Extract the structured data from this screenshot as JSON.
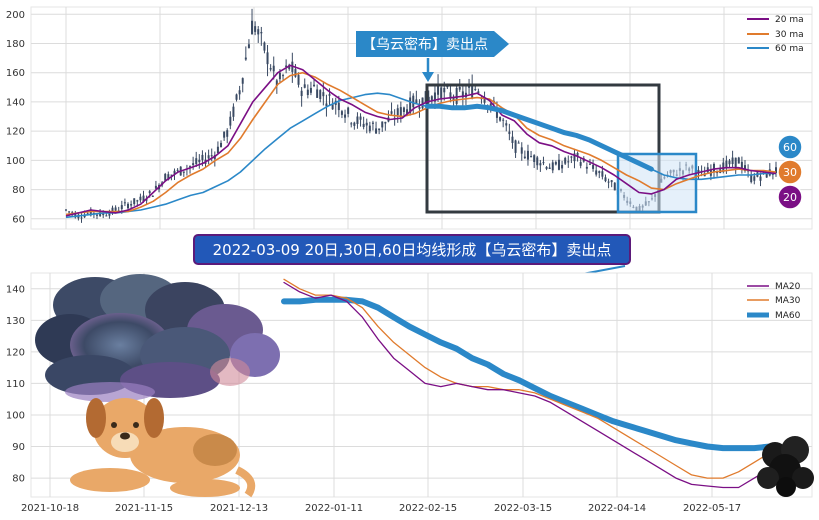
{
  "colors": {
    "ma20": "#7b0f85",
    "ma30": "#e07b2d",
    "ma60": "#2b88c8",
    "candle": "#3a4a63",
    "frame": "#333a40",
    "highlight_stroke": "#2b88c8",
    "highlight_fill": "#cfe3f5",
    "annotation_bg": "#2b88c8",
    "banner_bg": "#2258b8",
    "banner_border": "#5b1a7a"
  },
  "annotations": {
    "arrow_label": "【乌云密布】卖出点",
    "banner": "2022-03-09 20日,30日,60日均线形成【乌云密布】卖出点"
  },
  "badges": {
    "b60": "60",
    "b30": "30",
    "b20": "20"
  },
  "chart_data": [
    {
      "type": "line",
      "ylim": [
        53,
        205
      ],
      "yticks": [
        60,
        80,
        100,
        120,
        140,
        160,
        180,
        200
      ],
      "legend_position": "top-right",
      "grid": true,
      "series": [
        {
          "name": "20 ma",
          "values": [
            62,
            64,
            66,
            65,
            64,
            66,
            70,
            78,
            86,
            92,
            95,
            98,
            103,
            110,
            125,
            140,
            150,
            160,
            165,
            162,
            155,
            148,
            142,
            138,
            133,
            130,
            128,
            129,
            136,
            140,
            142,
            143,
            144,
            146,
            141,
            131,
            127,
            118,
            112,
            110,
            106,
            103,
            99,
            95,
            90,
            84,
            78,
            77,
            80,
            87,
            90,
            92,
            94,
            95,
            95,
            93,
            92,
            91
          ]
        },
        {
          "name": "30 ma",
          "values": [
            63,
            64,
            65,
            65,
            65,
            65,
            68,
            72,
            78,
            85,
            90,
            94,
            100,
            105,
            115,
            128,
            140,
            152,
            158,
            160,
            157,
            152,
            148,
            143,
            138,
            133,
            131,
            130,
            132,
            136,
            139,
            141,
            142,
            143,
            142,
            136,
            131,
            122,
            117,
            114,
            110,
            107,
            104,
            100,
            95,
            90,
            86,
            81,
            80,
            84,
            87,
            90,
            92,
            93,
            94,
            93,
            93,
            92
          ]
        },
        {
          "name": "60 ma",
          "values": [
            61,
            62,
            63,
            64,
            64,
            65,
            66,
            68,
            70,
            73,
            76,
            78,
            82,
            86,
            92,
            100,
            108,
            115,
            122,
            127,
            132,
            137,
            141,
            143,
            145,
            146,
            145,
            142,
            139,
            137,
            137,
            136,
            136,
            137,
            136,
            134,
            131,
            128,
            125,
            122,
            119,
            117,
            114,
            110,
            106,
            102,
            98,
            94,
            90,
            88,
            87,
            87,
            88,
            89,
            90,
            90,
            91,
            91
          ]
        }
      ],
      "candles_close": [
        66,
        62,
        64,
        63,
        66,
        70,
        73,
        78,
        89,
        92,
        96,
        100,
        105,
        120,
        150,
        195,
        175,
        152,
        165,
        148,
        150,
        142,
        138,
        128,
        125,
        122,
        128,
        134,
        140,
        142,
        148,
        144,
        145,
        150,
        140,
        128,
        110,
        104,
        100,
        95,
        98,
        102,
        96,
        90,
        82,
        74,
        66,
        72,
        88,
        92,
        95,
        90,
        94,
        96,
        100,
        88,
        90,
        93
      ]
    },
    {
      "type": "line",
      "ylim": [
        74,
        145
      ],
      "yticks": [
        80,
        90,
        100,
        110,
        120,
        130,
        140
      ],
      "x_tick_labels": [
        "2021-10-18",
        "2021-11-15",
        "2021-12-13",
        "2022-01-11",
        "2022-02-15",
        "2022-03-15",
        "2022-04-14",
        "2022-05-17"
      ],
      "legend_position": "top-right",
      "grid": true,
      "series": [
        {
          "name": "MA20",
          "values": [
            142,
            139,
            137,
            138,
            136,
            131,
            124,
            118,
            114,
            110,
            109,
            110,
            109,
            108,
            108,
            107,
            106,
            104,
            101,
            98,
            95,
            92,
            89,
            86,
            83,
            80,
            78,
            77.5,
            77,
            77,
            80,
            83
          ]
        },
        {
          "name": "MA30",
          "values": [
            143,
            140,
            138,
            138,
            137,
            134,
            128,
            123,
            119,
            115,
            112,
            110,
            109,
            109,
            108,
            108,
            107,
            105,
            103,
            101,
            99,
            96,
            93,
            90,
            87,
            84,
            81,
            80,
            80,
            82,
            85,
            88
          ]
        },
        {
          "name": "MA60",
          "values": [
            136,
            136,
            136.5,
            136.5,
            136.5,
            136,
            134,
            131,
            128,
            125.5,
            123,
            121,
            118,
            116,
            113,
            111,
            108.5,
            106,
            104,
            102,
            100,
            98,
            96.5,
            95,
            93.5,
            92,
            91,
            90,
            89.5,
            89.5,
            89.5,
            90
          ]
        }
      ]
    }
  ]
}
